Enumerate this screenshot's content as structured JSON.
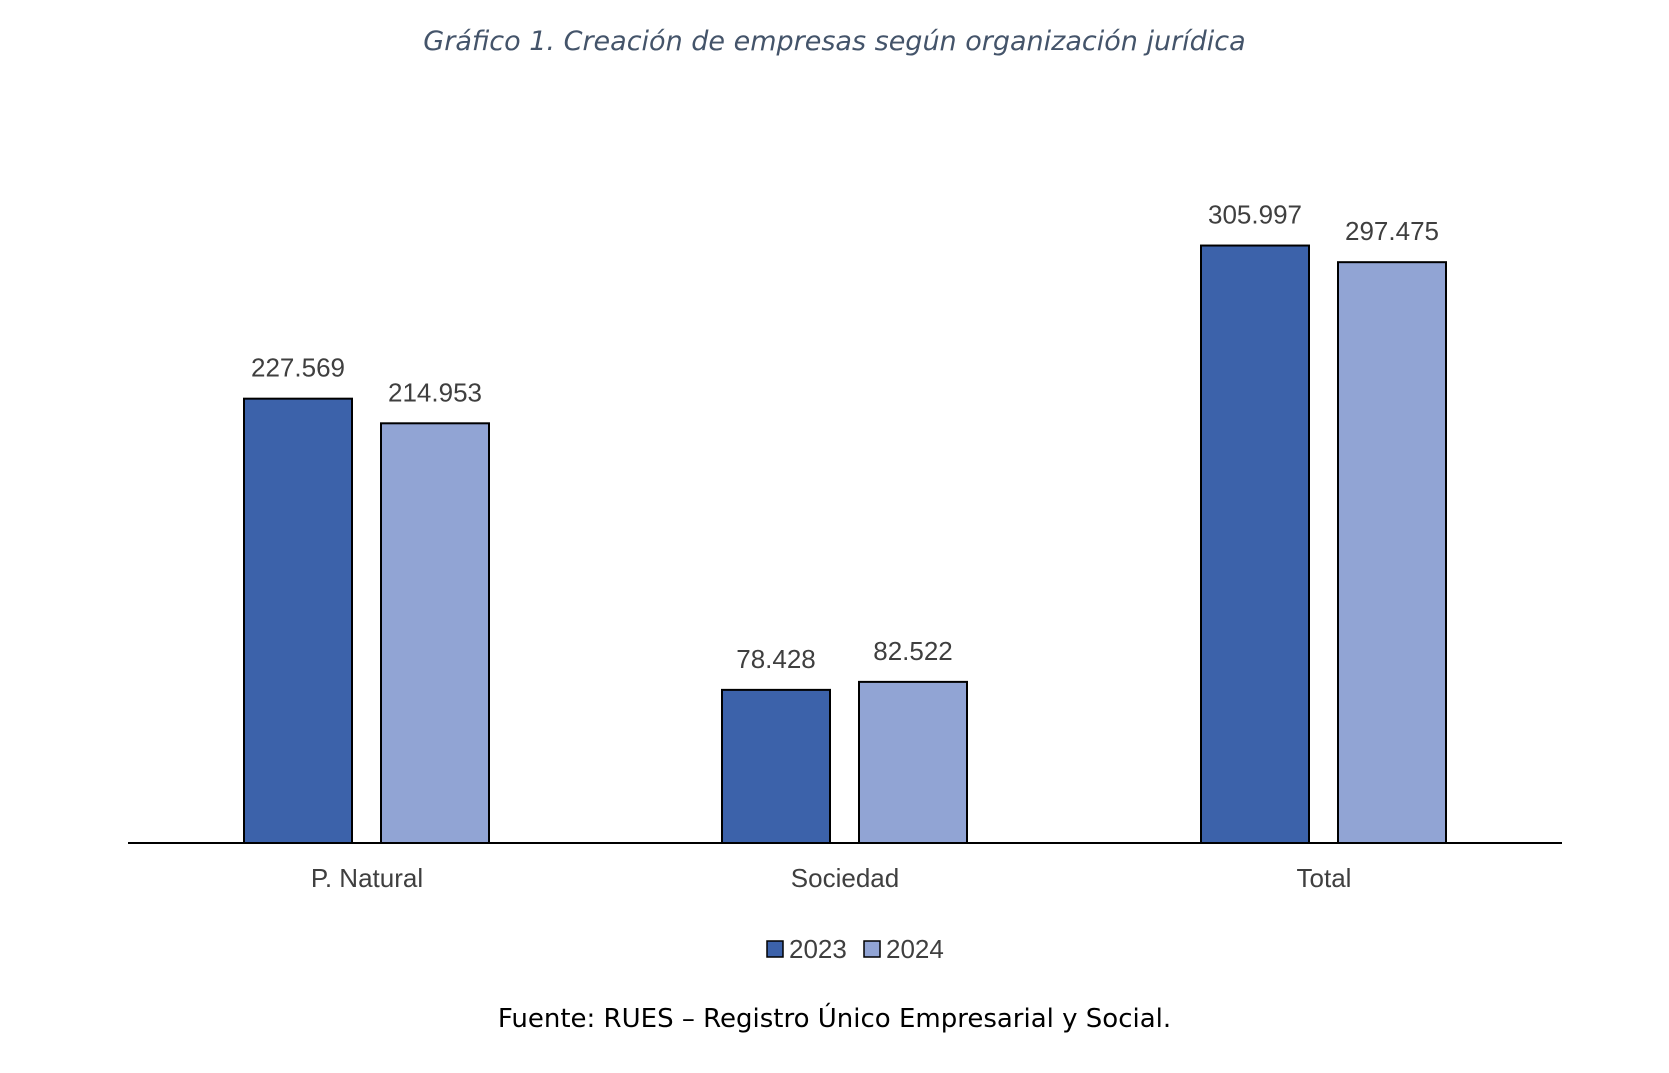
{
  "title": "Gráfico 1. Creación de empresas según organización jurídica",
  "source": "Fuente: RUES – Registro Único Empresarial y Social.",
  "colors": {
    "series_2023": "#3c62aa",
    "series_2024": "#91a4d4",
    "outline": "#000000",
    "label_text": "#3f3f3f",
    "title_text": "#44546a"
  },
  "chart_data": {
    "type": "bar",
    "categories": [
      "P. Natural",
      "Sociedad",
      "Total"
    ],
    "series": [
      {
        "name": "2023",
        "values": [
          227569,
          78428,
          305997
        ],
        "labels": [
          "227.569",
          "78.428",
          "305.997"
        ]
      },
      {
        "name": "2024",
        "values": [
          214953,
          82522,
          297475
        ],
        "labels": [
          "214.953",
          "82.522",
          "297.475"
        ]
      }
    ],
    "ylim": [
      0,
      380000
    ],
    "grid": false,
    "legend_position": "bottom-center",
    "xlabel": "",
    "ylabel": ""
  }
}
